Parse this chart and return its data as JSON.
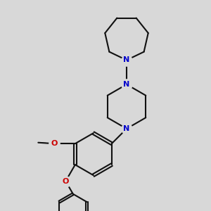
{
  "bg": "#d8d8d8",
  "bc": "#111111",
  "nc": "#0000cc",
  "oc": "#cc0000",
  "lw": 1.5,
  "fs": 8,
  "xlim": [
    0.0,
    1.0
  ],
  "ylim": [
    0.0,
    1.0
  ]
}
